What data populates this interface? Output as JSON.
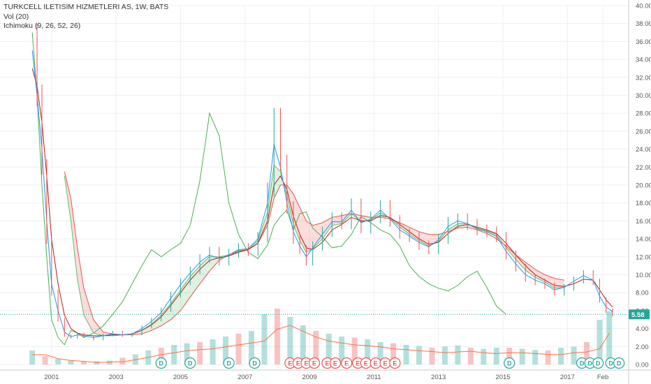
{
  "legend": {
    "title": "TURKCELL ILETISIM HIZMETLERI AS, 1W, BATS",
    "vol": "Vol (20)",
    "ichimoku": "Ichimoku (9, 26, 52, 26)"
  },
  "price_badge": "5.58",
  "colors": {
    "up": "#26a69a",
    "down": "#ef5350",
    "conversion": "#2196f3",
    "base": "#b71c1c",
    "lagging": "#4caf50",
    "leadA": "#5fbf63",
    "leadB": "#e2574c",
    "cloud_up": "rgba(76,175,80,0.18)",
    "cloud_down": "rgba(239,83,80,0.20)",
    "vol_ma": "#ff7043"
  },
  "chart_data": {
    "type": "line",
    "yticks": [
      "0.00",
      "2.00",
      "4.00",
      "6.00",
      "8.00",
      "10.00",
      "12.00",
      "14.00",
      "16.00",
      "18.00",
      "20.00",
      "22.00",
      "24.00",
      "26.00",
      "28.00",
      "30.00",
      "32.00",
      "34.00",
      "36.00",
      "38.00",
      "40.00"
    ],
    "ylim": [
      0,
      40
    ],
    "xticks": [
      {
        "label": "2001",
        "x": 2001.0
      },
      {
        "label": "2003",
        "x": 2003.0
      },
      {
        "label": "2005",
        "x": 2005.0
      },
      {
        "label": "2007",
        "x": 2007.0
      },
      {
        "label": "2009",
        "x": 2009.0
      },
      {
        "label": "2011",
        "x": 2011.0
      },
      {
        "label": "2013",
        "x": 2013.0
      },
      {
        "label": "2015",
        "x": 2015.0
      },
      {
        "label": "2017",
        "x": 2017.0
      },
      {
        "label": "Feb",
        "x": 2018.1
      }
    ],
    "xlim": [
      1999.4,
      2018.9
    ],
    "last_price": 5.58,
    "price": {
      "x": [
        2000.4,
        2000.55,
        2000.7,
        2000.85,
        2001.0,
        2001.2,
        2001.4,
        2001.6,
        2001.8,
        2002.0,
        2002.3,
        2002.6,
        2002.9,
        2003.2,
        2003.5,
        2003.8,
        2004.1,
        2004.4,
        2004.7,
        2005.0,
        2005.3,
        2005.6,
        2005.9,
        2006.2,
        2006.5,
        2006.8,
        2007.1,
        2007.4,
        2007.7,
        2007.9,
        2008.1,
        2008.3,
        2008.5,
        2008.7,
        2008.9,
        2009.1,
        2009.4,
        2009.7,
        2010.0,
        2010.3,
        2010.6,
        2010.9,
        2011.2,
        2011.5,
        2011.8,
        2012.1,
        2012.4,
        2012.7,
        2013.0,
        2013.3,
        2013.6,
        2013.9,
        2014.2,
        2014.5,
        2014.8,
        2015.1,
        2015.4,
        2015.7,
        2016.0,
        2016.3,
        2016.6,
        2016.9,
        2017.2,
        2017.5,
        2017.8,
        2018.0,
        2018.2,
        2018.4
      ],
      "close": [
        36.5,
        30,
        22,
        14,
        8,
        5,
        3.2,
        3.0,
        3.4,
        3.1,
        2.8,
        3.3,
        3.6,
        3.2,
        3.4,
        4.2,
        5.0,
        6.1,
        7.8,
        9.2,
        10.5,
        11.8,
        12.6,
        11.5,
        12.4,
        13.0,
        12.6,
        14.2,
        19.5,
        27.5,
        22.5,
        17.5,
        14.0,
        12.8,
        11.5,
        13.2,
        14.8,
        16.3,
        15.7,
        17.8,
        15.2,
        16.4,
        17.6,
        16.0,
        14.6,
        14.2,
        13.3,
        12.8,
        14.0,
        15.8,
        16.2,
        15.6,
        15.0,
        14.8,
        14.2,
        12.2,
        10.8,
        9.6,
        9.2,
        8.8,
        8.0,
        8.6,
        9.4,
        10.1,
        9.2,
        7.2,
        6.0,
        5.58
      ]
    },
    "ichimoku_conversion": [
      35,
      30,
      24,
      16,
      9,
      6,
      3.6,
      3.1,
      3.3,
      3.2,
      3.0,
      3.2,
      3.4,
      3.3,
      3.4,
      4.0,
      4.8,
      5.8,
      7.4,
      8.9,
      10.2,
      11.4,
      12.2,
      11.8,
      12.2,
      12.8,
      12.9,
      14.0,
      18.0,
      24.5,
      22.0,
      18.0,
      14.8,
      13.2,
      12.0,
      13.0,
      14.5,
      15.9,
      15.9,
      17.2,
      15.8,
      16.2,
      17.2,
      16.2,
      15.0,
      14.3,
      13.6,
      13.1,
      13.9,
      15.4,
      16.0,
      15.7,
      15.1,
      14.8,
      14.3,
      12.6,
      11.2,
      10.0,
      9.4,
      9.0,
      8.3,
      8.6,
      9.3,
      9.9,
      9.4,
      7.6,
      6.4,
      5.9
    ],
    "ichimoku_base": [
      33,
      31,
      27,
      21,
      14,
      9,
      5.5,
      4.0,
      3.5,
      3.3,
      3.2,
      3.2,
      3.3,
      3.3,
      3.4,
      3.8,
      4.4,
      5.3,
      6.6,
      8.0,
      9.4,
      10.6,
      11.6,
      11.9,
      12.1,
      12.5,
      12.8,
      13.5,
      16.0,
      20.0,
      21.0,
      19.5,
      16.5,
      14.5,
      13.0,
      12.8,
      13.6,
      15.0,
      15.6,
      16.4,
      16.0,
      16.0,
      16.6,
      16.4,
      15.6,
      14.8,
      14.0,
      13.4,
      13.6,
      14.6,
      15.4,
      15.6,
      15.3,
      15.0,
      14.6,
      13.5,
      12.2,
      11.0,
      10.0,
      9.4,
      8.8,
      8.7,
      9.0,
      9.5,
      9.4,
      8.3,
      7.2,
      6.4
    ],
    "ichimoku_lagging": [
      37,
      30,
      20,
      12,
      5,
      3.0,
      2.2,
      3.8,
      3.5,
      3.0,
      3.5,
      4.3,
      5.6,
      7.0,
      9.0,
      11.0,
      12.8,
      12.0,
      12.8,
      13.5,
      15.5,
      20.5,
      28.0,
      25.5,
      18.0,
      14.5,
      12.5,
      11.8,
      13.3,
      15.5,
      16.5,
      17.2,
      15.0,
      16.8,
      17.0,
      15.2,
      14.2,
      13.0,
      13.2,
      14.5,
      16.5,
      15.8,
      15.0,
      14.5,
      13.2,
      11.0,
      9.8,
      9.0,
      8.5,
      8.2,
      8.8,
      9.8,
      10.4,
      8.6,
      6.5,
      5.58
    ],
    "ichimoku_leadA": [
      null,
      null,
      null,
      null,
      null,
      null,
      21,
      16,
      9.5,
      5.5,
      3.5,
      3.2,
      3.2,
      3.3,
      3.4,
      3.8,
      4.5,
      5.5,
      6.8,
      8.3,
      9.8,
      11.0,
      12.0,
      12.0,
      12.2,
      12.7,
      12.8,
      13.8,
      17.0,
      22.2,
      21.5,
      18.8,
      15.6,
      13.8,
      12.5,
      12.9,
      14.0,
      15.5,
      15.7,
      16.8,
      15.9,
      16.1,
      16.9,
      16.3,
      15.3,
      14.5,
      13.8,
      13.2,
      13.7,
      15.0,
      15.7,
      15.7,
      15.2,
      14.9,
      14.5,
      13.0,
      11.7,
      10.5,
      9.7,
      9.2,
      8.5,
      8.6
    ],
    "ichimoku_leadB": [
      null,
      null,
      null,
      null,
      null,
      null,
      21.5,
      18.5,
      13,
      8.5,
      5.0,
      3.6,
      3.4,
      3.3,
      3.3,
      3.4,
      3.8,
      4.3,
      5.0,
      6.0,
      7.5,
      9.0,
      10.4,
      11.6,
      12.2,
      12.6,
      12.8,
      13.5,
      15.5,
      18.5,
      20.0,
      20.0,
      19.0,
      17.5,
      16.0,
      15.5,
      15.8,
      16.4,
      16.6,
      16.8,
      16.6,
      16.4,
      16.4,
      16.2,
      15.8,
      15.3,
      14.8,
      14.5,
      14.5,
      14.8,
      15.2,
      15.3,
      15.0,
      14.6,
      14.0,
      13.2,
      12.2,
      11.4,
      10.6,
      10.0,
      9.6,
      9.4
    ],
    "volume": {
      "x": [
        2000.4,
        2000.8,
        2001.2,
        2001.6,
        2002.0,
        2002.4,
        2002.8,
        2003.2,
        2003.6,
        2004.0,
        2004.4,
        2004.8,
        2005.2,
        2005.6,
        2006.0,
        2006.4,
        2006.8,
        2007.2,
        2007.6,
        2008.0,
        2008.4,
        2008.8,
        2009.2,
        2009.6,
        2010.0,
        2010.4,
        2010.8,
        2011.2,
        2011.6,
        2012.0,
        2012.4,
        2012.8,
        2013.2,
        2013.6,
        2014.0,
        2014.4,
        2014.8,
        2015.2,
        2015.6,
        2016.0,
        2016.4,
        2016.8,
        2017.2,
        2017.6,
        2018.0,
        2018.3
      ],
      "values": [
        0.25,
        0.15,
        0.1,
        0.08,
        0.05,
        0.06,
        0.07,
        0.12,
        0.18,
        0.25,
        0.3,
        0.35,
        0.38,
        0.4,
        0.45,
        0.5,
        0.55,
        0.6,
        0.9,
        1.0,
        0.85,
        0.7,
        0.6,
        0.55,
        0.5,
        0.48,
        0.45,
        0.4,
        0.38,
        0.35,
        0.33,
        0.3,
        0.32,
        0.34,
        0.3,
        0.28,
        0.3,
        0.3,
        0.28,
        0.26,
        0.25,
        0.3,
        0.32,
        0.4,
        0.8,
        0.95
      ]
    },
    "events": [
      {
        "label": "D",
        "x": 2004.4
      },
      {
        "label": "D",
        "x": 2005.3
      },
      {
        "label": "D",
        "x": 2006.5
      },
      {
        "label": "D",
        "x": 2007.3
      },
      {
        "label": "E",
        "x": 2008.4
      },
      {
        "label": "E",
        "x": 2008.65
      },
      {
        "label": "E",
        "x": 2008.9
      },
      {
        "label": "E",
        "x": 2009.15
      },
      {
        "label": "E",
        "x": 2009.55
      },
      {
        "label": "E",
        "x": 2009.8
      },
      {
        "label": "E",
        "x": 2010.15
      },
      {
        "label": "E",
        "x": 2010.5
      },
      {
        "label": "E",
        "x": 2010.75
      },
      {
        "label": "E",
        "x": 2011.05
      },
      {
        "label": "E",
        "x": 2011.35
      },
      {
        "label": "E",
        "x": 2011.65
      },
      {
        "label": "D",
        "x": 2015.2
      },
      {
        "label": "D",
        "x": 2017.45
      },
      {
        "label": "D",
        "x": 2017.7
      },
      {
        "label": "D",
        "x": 2017.95
      },
      {
        "label": "D",
        "x": 2018.35
      },
      {
        "label": "D",
        "x": 2018.6
      }
    ]
  }
}
